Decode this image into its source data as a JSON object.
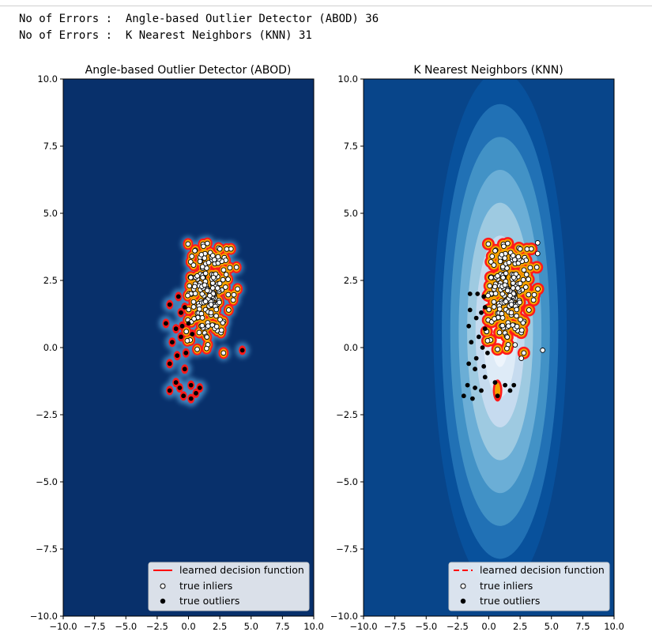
{
  "console": {
    "line1": "No of Errors :  Angle-based Outlier Detector (ABOD) 36",
    "line2": "No of Errors :  K Nearest Neighbors (KNN) 31"
  },
  "chart_data": [
    {
      "type": "scatter",
      "title": "Angle-based Outlier Detector (ABOD)",
      "xlim": [
        -10,
        10
      ],
      "ylim": [
        -10,
        10
      ],
      "xticks": [
        "−10.0",
        "−7.5",
        "−5.0",
        "−2.5",
        "0.0",
        "2.5",
        "5.0",
        "7.5",
        "10.0"
      ],
      "yticks": [
        "−10.0",
        "−7.5",
        "−5.0",
        "−2.5",
        "0.0",
        "2.5",
        "5.0",
        "7.5",
        "10.0"
      ],
      "background": "#08306b",
      "inlier_cluster": {
        "center": [
          1.5,
          2.0
        ],
        "spread": [
          0.9,
          1.0
        ],
        "count": 200
      },
      "outliers": [
        [
          -0.8,
          1.9
        ],
        [
          -0.6,
          1.3
        ],
        [
          -0.5,
          0.8
        ],
        [
          -1.0,
          0.7
        ],
        [
          -1.5,
          1.6
        ],
        [
          -1.8,
          0.9
        ],
        [
          -1.3,
          0.2
        ],
        [
          -0.6,
          0.4
        ],
        [
          -0.2,
          -0.2
        ],
        [
          -0.9,
          -0.3
        ],
        [
          -1.5,
          -0.6
        ],
        [
          -0.3,
          -0.8
        ],
        [
          -1.0,
          -1.3
        ],
        [
          -1.5,
          -1.6
        ],
        [
          -0.4,
          -1.8
        ],
        [
          0.2,
          -1.4
        ],
        [
          0.6,
          -1.7
        ],
        [
          0.9,
          -1.5
        ],
        [
          -0.7,
          -1.5
        ],
        [
          0.2,
          -1.9
        ],
        [
          4.3,
          -0.1
        ],
        [
          -0.3,
          1.5
        ],
        [
          0.0,
          0.9
        ],
        [
          0.3,
          0.5
        ]
      ],
      "legend": {
        "decision": "learned decision function",
        "inliers": "true inliers",
        "outliers": "true outliers",
        "line_color": "#ff0000",
        "line_style": "solid"
      }
    },
    {
      "type": "scatter",
      "title": "K Nearest Neighbors (KNN)",
      "xlim": [
        -10,
        10
      ],
      "ylim": [
        -10,
        10
      ],
      "xticks": [
        "−10.0",
        "−7.5",
        "−5.0",
        "−2.5",
        "0.0",
        "2.5",
        "5.0",
        "7.5",
        "10.0"
      ],
      "yticks": [
        "−10.0",
        "−7.5",
        "−5.0",
        "−2.5",
        "0.0",
        "2.5",
        "5.0",
        "7.5",
        "10.0"
      ],
      "contour_colors": [
        "#08519c",
        "#2171b5",
        "#4292c6",
        "#6baed6",
        "#9ecae1",
        "#c6dbef",
        "#deebf7",
        "#eef5fc"
      ],
      "contour_levels": [
        9.5,
        8.3,
        7.1,
        5.9,
        4.7,
        3.5,
        2.4,
        1.3
      ],
      "inlier_cluster": {
        "center": [
          1.5,
          2.0
        ],
        "spread": [
          0.9,
          1.0
        ],
        "count": 200
      },
      "extra_inliers": [
        [
          3.9,
          3.9
        ],
        [
          3.9,
          3.5
        ],
        [
          4.3,
          -0.1
        ],
        [
          2.6,
          -0.4
        ],
        [
          2.1,
          0.1
        ]
      ],
      "outliers": [
        [
          -1.5,
          2.0
        ],
        [
          -0.9,
          2.0
        ],
        [
          -0.4,
          1.9
        ],
        [
          -1.5,
          1.4
        ],
        [
          -0.6,
          1.3
        ],
        [
          -1.0,
          1.1
        ],
        [
          -1.6,
          0.8
        ],
        [
          -0.3,
          0.7
        ],
        [
          -0.8,
          0.4
        ],
        [
          -1.4,
          0.2
        ],
        [
          -0.5,
          0.0
        ],
        [
          -0.1,
          -0.2
        ],
        [
          -1.0,
          -0.4
        ],
        [
          -1.6,
          -0.6
        ],
        [
          -0.4,
          -0.7
        ],
        [
          -1.1,
          -0.8
        ],
        [
          -0.3,
          -1.1
        ],
        [
          -1.7,
          -1.4
        ],
        [
          -1.1,
          -1.5
        ],
        [
          -0.6,
          -1.6
        ],
        [
          -2.0,
          -1.8
        ],
        [
          -1.3,
          -1.9
        ],
        [
          0.5,
          -1.3
        ],
        [
          1.3,
          -1.4
        ],
        [
          2.0,
          -1.4
        ],
        [
          0.7,
          -1.8
        ],
        [
          1.7,
          -1.6
        ],
        [
          -0.3,
          1.5
        ]
      ],
      "legend": {
        "decision": "learned decision function",
        "inliers": "true inliers",
        "outliers": "true outliers",
        "line_color": "#ff0000",
        "line_style": "dashed"
      }
    }
  ]
}
